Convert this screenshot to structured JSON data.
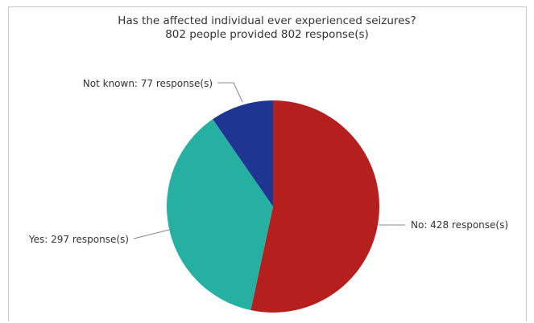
{
  "chart_data": {
    "type": "pie",
    "title": "Has the affected individual ever experienced seizures?",
    "subtitle": "802 people provided 802 response(s)",
    "slices": [
      {
        "key": "no",
        "label": "No: 428 response(s)",
        "value": 428,
        "color": "#b5201f"
      },
      {
        "key": "yes",
        "label": "Yes: 297 response(s)",
        "value": 297,
        "color": "#26b0a2"
      },
      {
        "key": "notknown",
        "label": "Not known: 77 response(s)",
        "value": 77,
        "color": "#1e3591"
      }
    ]
  }
}
